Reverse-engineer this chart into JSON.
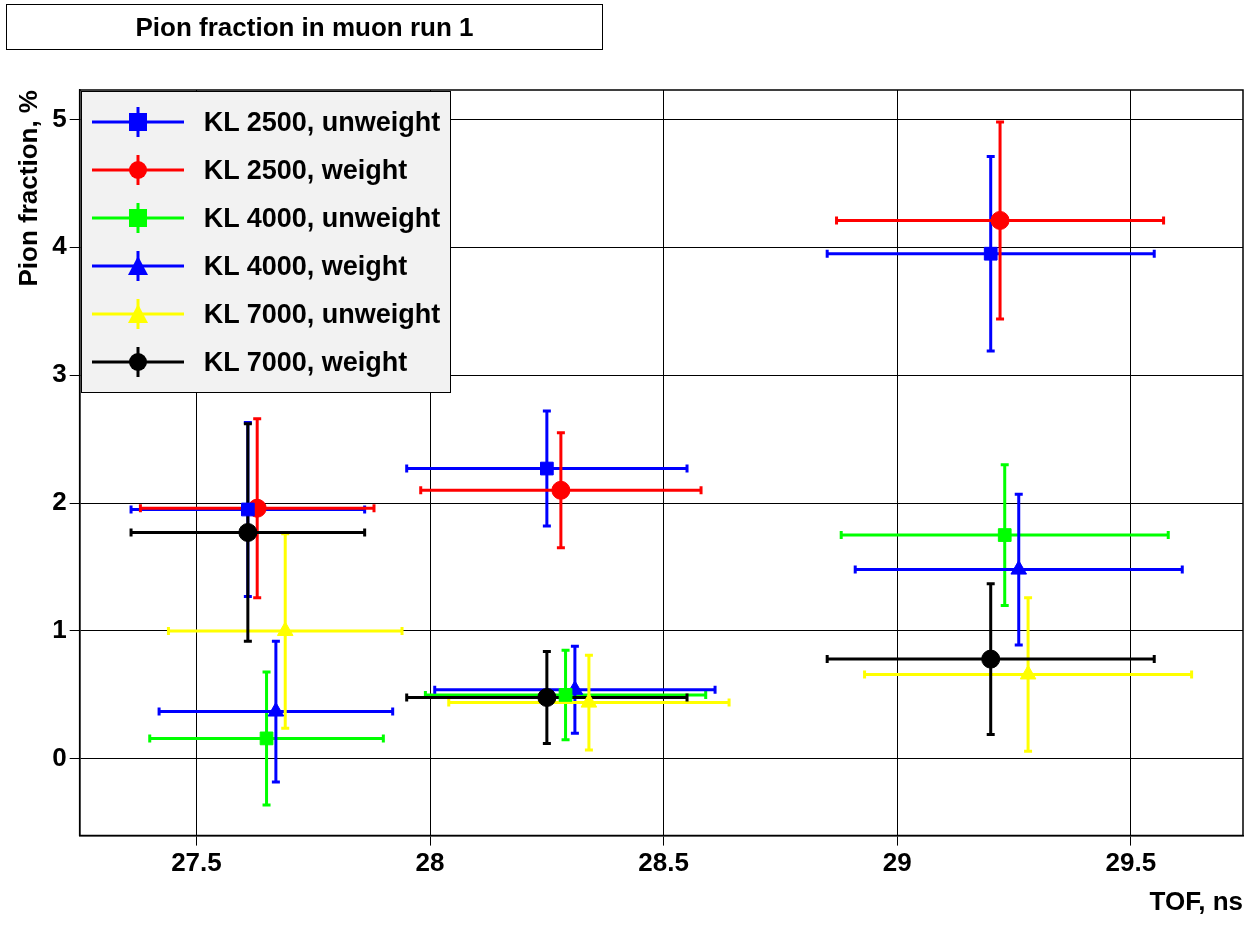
{
  "chart_data": {
    "type": "scatter",
    "title": "Pion fraction in muon run 1",
    "xlabel": "TOF, ns",
    "ylabel": "Pion fraction, %",
    "xlim": [
      27.25,
      29.74
    ],
    "ylim": [
      -0.6,
      5.23
    ],
    "xticks": [
      27.5,
      28,
      28.5,
      29,
      29.5
    ],
    "yticks": [
      0,
      1,
      2,
      3,
      4,
      5
    ],
    "grid": true,
    "legend": "top left",
    "series": [
      {
        "name": "KL 2500, unweight",
        "color": "#0000ff",
        "marker": "square",
        "x": [
          27.61,
          28.25,
          29.2
        ],
        "values": [
          1.95,
          2.27,
          3.95
        ],
        "xerrors": [
          0.25,
          0.3,
          0.35
        ],
        "errors": [
          0.68,
          0.45,
          0.76
        ]
      },
      {
        "name": "KL 2500, weight",
        "color": "#ff0000",
        "marker": "circle",
        "x": [
          27.63,
          28.28,
          29.22
        ],
        "values": [
          1.96,
          2.1,
          4.21
        ],
        "xerrors": [
          0.25,
          0.3,
          0.35
        ],
        "errors": [
          0.7,
          0.45,
          0.77
        ]
      },
      {
        "name": "KL 4000, unweight",
        "color": "#00ff00",
        "marker": "square",
        "x": [
          27.65,
          28.29,
          29.23
        ],
        "values": [
          0.16,
          0.5,
          1.75
        ],
        "xerrors": [
          0.25,
          0.3,
          0.35
        ],
        "errors": [
          0.52,
          0.35,
          0.55
        ]
      },
      {
        "name": "KL 4000, weight",
        "color": "#0000ff",
        "marker": "triangle",
        "x": [
          27.67,
          28.31,
          29.26
        ],
        "values": [
          0.37,
          0.54,
          1.48
        ],
        "xerrors": [
          0.25,
          0.3,
          0.35
        ],
        "errors": [
          0.55,
          0.34,
          0.59
        ]
      },
      {
        "name": "KL 7000, unweight",
        "color": "#ffff00",
        "marker": "triangle",
        "x": [
          27.69,
          28.34,
          29.28
        ],
        "values": [
          1.0,
          0.44,
          0.66
        ],
        "xerrors": [
          0.25,
          0.3,
          0.35
        ],
        "errors": [
          0.76,
          0.37,
          0.6
        ]
      },
      {
        "name": "KL 7000, weight",
        "color": "#000000",
        "marker": "circle",
        "x": [
          27.61,
          28.25,
          29.2
        ],
        "values": [
          1.77,
          0.48,
          0.78
        ],
        "xerrors": [
          0.25,
          0.3,
          0.35
        ],
        "errors": [
          0.85,
          0.36,
          0.59
        ]
      }
    ]
  }
}
